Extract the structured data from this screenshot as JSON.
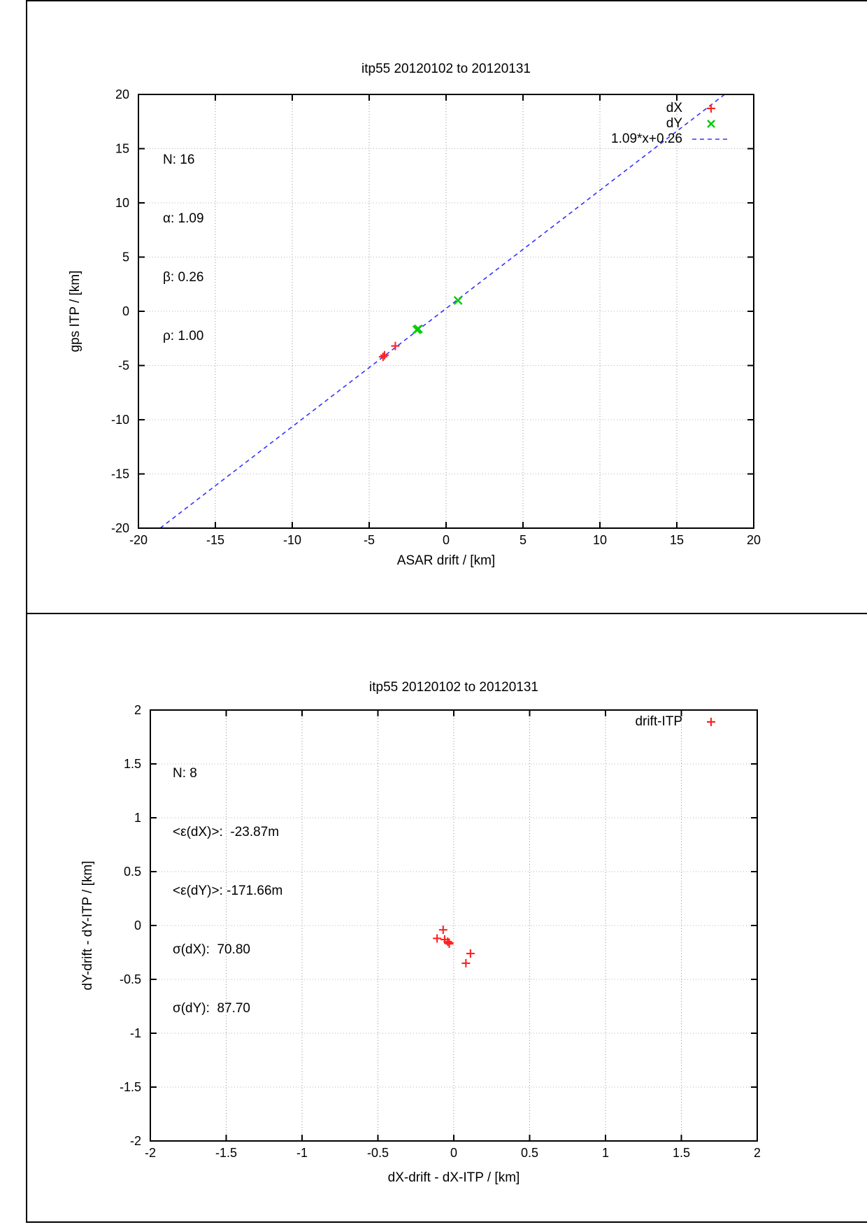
{
  "colors": {
    "marker_red": "#ff2222",
    "marker_green": "#00cc00",
    "fit_blue": "#3333ff",
    "grid_gray": "#999999"
  },
  "chart_data": [
    {
      "type": "scatter",
      "title": "itp55 20120102 to 20120131",
      "xlabel": "ASAR drift / [km]",
      "ylabel": "gps ITP / [km]",
      "xlim": [
        -20,
        20
      ],
      "ylim": [
        -20,
        20
      ],
      "grid": true,
      "xticks": {
        "values": [
          -20,
          -15,
          -10,
          -5,
          0,
          5,
          10,
          15,
          20
        ],
        "labels": [
          "-20",
          "-15",
          "-10",
          "-5",
          "0",
          "5",
          "10",
          "15",
          "20"
        ]
      },
      "yticks": {
        "values": [
          -20,
          -15,
          -10,
          -5,
          0,
          5,
          10,
          15,
          20
        ],
        "labels": [
          "-20",
          "-15",
          "-10",
          "-5",
          "0",
          "5",
          "10",
          "15",
          "20"
        ]
      },
      "stats": [
        "N: 16",
        "α: 1.09",
        "β: 0.26",
        "ρ: 1.00"
      ],
      "legend_position": "top-right-inside",
      "legend": [
        {
          "label": "dX",
          "marker": "plus",
          "color": "#ff2222"
        },
        {
          "label": "dY",
          "marker": "cross",
          "color": "#00cc00"
        },
        {
          "label": "1.09*x+0.26",
          "marker": "dashed-line",
          "color": "#3333ff"
        }
      ],
      "fit": {
        "label": "1.09*x+0.26",
        "slope": 1.09,
        "intercept": 0.26,
        "color": "#3333ff",
        "style": "dashed"
      },
      "series": [
        {
          "name": "dX",
          "marker": "plus",
          "color": "#ff2222",
          "points": [
            [
              -4.1,
              -4.2
            ],
            [
              -4.0,
              -4.05
            ],
            [
              -3.3,
              -3.2
            ]
          ]
        },
        {
          "name": "dY",
          "marker": "cross",
          "color": "#00cc00",
          "points": [
            [
              -1.9,
              -1.7
            ],
            [
              -1.8,
              -1.62
            ],
            [
              0.78,
              1.0
            ]
          ]
        }
      ]
    },
    {
      "type": "scatter",
      "title": "itp55 20120102 to 20120131",
      "xlabel": "dX-drift - dX-ITP / [km]",
      "ylabel": "dY-drift - dY-ITP / [km]",
      "xlim": [
        -2,
        2
      ],
      "ylim": [
        -2,
        2
      ],
      "grid": true,
      "xticks": {
        "values": [
          -2,
          -1.5,
          -1,
          -0.5,
          0,
          0.5,
          1,
          1.5,
          2
        ],
        "labels": [
          "-2",
          "-1.5",
          "-1",
          "-0.5",
          "0",
          "0.5",
          "1",
          "1.5",
          "2"
        ]
      },
      "yticks": {
        "values": [
          -2,
          -1.5,
          -1,
          -0.5,
          0,
          0.5,
          1,
          1.5,
          2
        ],
        "labels": [
          "-2",
          "-1.5",
          "-1",
          "-0.5",
          "0",
          "0.5",
          "1",
          "1.5",
          "2"
        ]
      },
      "stats": [
        "N: 8",
        "<ε(dX)>:  -23.87m",
        "<ε(dY)>: -171.66m",
        "σ(dX):  70.80",
        "σ(dY):  87.70"
      ],
      "legend_position": "top-right-inside",
      "legend": [
        {
          "label": "drift-ITP",
          "marker": "plus",
          "color": "#ff2222"
        }
      ],
      "series": [
        {
          "name": "drift-ITP",
          "marker": "plus",
          "color": "#ff2222",
          "points": [
            [
              -0.07,
              -0.04
            ],
            [
              -0.11,
              -0.12
            ],
            [
              -0.06,
              -0.13
            ],
            [
              -0.04,
              -0.15
            ],
            [
              -0.03,
              -0.16
            ],
            [
              -0.03,
              -0.17
            ],
            [
              0.11,
              -0.26
            ],
            [
              0.08,
              -0.35
            ]
          ]
        }
      ]
    }
  ]
}
